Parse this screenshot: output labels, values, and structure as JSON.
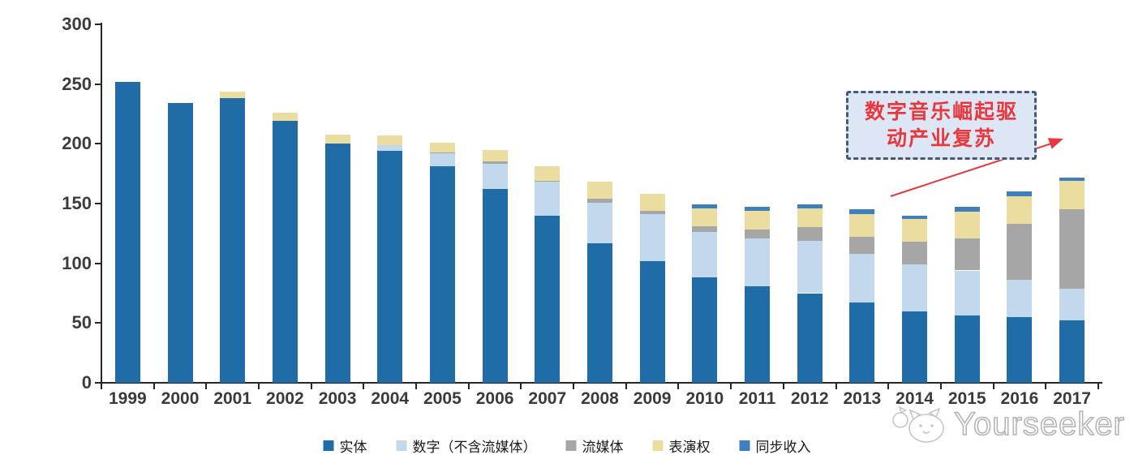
{
  "chart_data": {
    "type": "bar",
    "stacked": true,
    "title": "",
    "xlabel": "",
    "ylabel": "",
    "categories": [
      "1999",
      "2000",
      "2001",
      "2002",
      "2003",
      "2004",
      "2005",
      "2006",
      "2007",
      "2008",
      "2009",
      "2010",
      "2011",
      "2012",
      "2013",
      "2014",
      "2015",
      "2016",
      "2017"
    ],
    "series": [
      {
        "name": "实体",
        "color": "#1F6CA7",
        "values": [
          252,
          234,
          238,
          219,
          200,
          194,
          181,
          162,
          140,
          117,
          102,
          88,
          81,
          75,
          67,
          60,
          56,
          55,
          52
        ]
      },
      {
        "name": "数字（不含流媒体）",
        "color": "#C2D8EC",
        "values": [
          0,
          0,
          0,
          0,
          0,
          5,
          11,
          21,
          28,
          34,
          39,
          38,
          40,
          44,
          41,
          39,
          38,
          31,
          27
        ]
      },
      {
        "name": "流媒体",
        "color": "#A6A6A6",
        "values": [
          0,
          0,
          0,
          0,
          0,
          0,
          1,
          2,
          1,
          3,
          3,
          5,
          7,
          11,
          14,
          19,
          27,
          47,
          66
        ]
      },
      {
        "name": "表演权",
        "color": "#EBDCA0",
        "values": [
          0,
          0,
          6,
          7,
          8,
          8,
          8,
          10,
          12,
          14,
          14,
          15,
          16,
          16,
          19,
          19,
          22,
          23,
          24
        ]
      },
      {
        "name": "同步收入",
        "color": "#3F7FBE",
        "values": [
          0,
          0,
          0,
          0,
          0,
          0,
          0,
          0,
          0,
          0,
          0,
          3,
          3,
          3,
          4,
          3,
          4,
          4,
          3
        ]
      }
    ],
    "ylim": [
      0,
      300
    ],
    "yticks": [
      0,
      50,
      100,
      150,
      200,
      250,
      300
    ],
    "grid": false,
    "legend_position": "bottom"
  },
  "annotation": {
    "line1": "数字音乐崛起驱",
    "line2": "动产业复苏",
    "text_color": "#E8383D",
    "border_color": "#445A77",
    "fill_color": "#DCE6F4",
    "arrow_color": "#E8383D"
  },
  "watermark": {
    "text": "Yourseeker"
  }
}
